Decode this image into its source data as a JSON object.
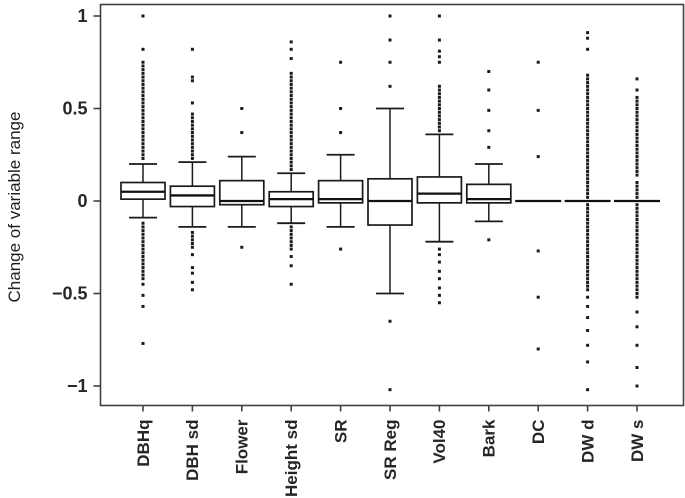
{
  "figure": {
    "background": "#ffffff",
    "ylabel": "Change of variable range"
  },
  "chart_data": {
    "type": "boxplot",
    "title": "",
    "xlabel": "",
    "ylabel": "Change of variable range",
    "ylim": [
      -1.1,
      1.06
    ],
    "grid": false,
    "frame": true,
    "legend": "none",
    "yticks": [
      {
        "v": 1,
        "label": "1"
      },
      {
        "v": 0.5,
        "label": "0.5"
      },
      {
        "v": 0,
        "label": "0"
      },
      {
        "v": -0.5,
        "label": "−0.5"
      },
      {
        "v": -1,
        "label": "−1"
      }
    ],
    "categories": [
      "DBHq",
      "DBH sd",
      "Flower",
      "Height sd",
      "SR",
      "SR Reg",
      "Vol40",
      "Bark",
      "DC",
      "DW d",
      "DW s"
    ],
    "boxes": [
      {
        "label": "DBHq",
        "whislo": -0.09,
        "q1": 0.01,
        "med": 0.05,
        "q3": 0.1,
        "whishi": 0.2,
        "outliers": [
          1.0,
          0.82,
          0.75,
          0.73,
          0.71,
          0.69,
          0.67,
          0.65,
          0.63,
          0.61,
          0.59,
          0.57,
          0.55,
          0.53,
          0.51,
          0.49,
          0.47,
          0.45,
          0.43,
          0.41,
          0.39,
          0.37,
          0.35,
          0.33,
          0.31,
          0.29,
          0.27,
          0.25,
          0.23,
          -0.12,
          -0.14,
          -0.16,
          -0.18,
          -0.2,
          -0.22,
          -0.24,
          -0.26,
          -0.28,
          -0.3,
          -0.32,
          -0.34,
          -0.36,
          -0.38,
          -0.4,
          -0.42,
          -0.45,
          -0.51,
          -0.57,
          -0.77
        ]
      },
      {
        "label": "DBH sd",
        "whislo": -0.14,
        "q1": -0.03,
        "med": 0.03,
        "q3": 0.08,
        "whishi": 0.21,
        "outliers": [
          0.82,
          0.67,
          0.65,
          0.53,
          0.47,
          0.45,
          0.43,
          0.41,
          0.39,
          0.37,
          0.35,
          0.33,
          0.31,
          0.29,
          0.27,
          0.25,
          0.23,
          -0.17,
          -0.19,
          -0.21,
          -0.23,
          -0.25,
          -0.29,
          -0.36,
          -0.39,
          -0.44,
          -0.48
        ]
      },
      {
        "label": "Flower",
        "whislo": -0.14,
        "q1": -0.02,
        "med": 0.0,
        "q3": 0.11,
        "whishi": 0.24,
        "outliers": [
          0.5,
          0.37,
          -0.25
        ]
      },
      {
        "label": "Height sd",
        "whislo": -0.12,
        "q1": -0.03,
        "med": 0.01,
        "q3": 0.05,
        "whishi": 0.15,
        "outliers": [
          0.86,
          0.82,
          0.77,
          0.69,
          0.67,
          0.65,
          0.63,
          0.61,
          0.59,
          0.57,
          0.55,
          0.53,
          0.51,
          0.49,
          0.47,
          0.45,
          0.43,
          0.41,
          0.39,
          0.37,
          0.35,
          0.33,
          0.31,
          0.29,
          0.27,
          0.25,
          0.23,
          0.21,
          0.19,
          0.17,
          -0.14,
          -0.16,
          -0.18,
          -0.2,
          -0.22,
          -0.24,
          -0.26,
          -0.3,
          -0.35,
          -0.45
        ]
      },
      {
        "label": "SR",
        "whislo": -0.14,
        "q1": -0.01,
        "med": 0.01,
        "q3": 0.11,
        "whishi": 0.25,
        "outliers": [
          0.75,
          0.5,
          0.37,
          -0.26
        ]
      },
      {
        "label": "SR Reg",
        "whislo": -0.5,
        "q1": -0.13,
        "med": 0.0,
        "q3": 0.12,
        "whishi": 0.5,
        "outliers": [
          1.0,
          0.87,
          0.75,
          0.62,
          -0.65,
          -1.02
        ]
      },
      {
        "label": "Vol40",
        "whislo": -0.22,
        "q1": -0.01,
        "med": 0.04,
        "q3": 0.13,
        "whishi": 0.36,
        "outliers": [
          1.0,
          0.87,
          0.81,
          0.78,
          0.75,
          0.62,
          0.6,
          0.58,
          0.56,
          0.54,
          0.52,
          0.5,
          0.48,
          0.46,
          0.44,
          0.42,
          0.4,
          0.38,
          -0.26,
          -0.29,
          -0.33,
          -0.38,
          -0.42,
          -0.47,
          -0.51,
          -0.55
        ]
      },
      {
        "label": "Bark",
        "whislo": -0.11,
        "q1": -0.01,
        "med": 0.01,
        "q3": 0.09,
        "whishi": 0.2,
        "outliers": [
          0.7,
          0.6,
          0.49,
          0.38,
          0.29,
          -0.21
        ]
      },
      {
        "label": "DC",
        "whislo": 0.0,
        "q1": 0.0,
        "med": 0.0,
        "q3": 0.0,
        "whishi": 0.0,
        "outliers": [
          0.75,
          0.49,
          0.24,
          -0.27,
          -0.52,
          -0.8
        ]
      },
      {
        "label": "DW d",
        "whislo": 0.0,
        "q1": 0.0,
        "med": 0.0,
        "q3": 0.0,
        "whishi": 0.0,
        "outliers": [
          0.91,
          0.88,
          0.82,
          0.68,
          0.66,
          0.64,
          0.62,
          0.6,
          0.58,
          0.56,
          0.54,
          0.52,
          0.5,
          0.48,
          0.46,
          0.44,
          0.42,
          0.4,
          0.38,
          0.36,
          0.34,
          0.32,
          0.3,
          0.28,
          0.26,
          0.24,
          0.22,
          0.2,
          0.18,
          0.16,
          0.14,
          0.12,
          0.1,
          0.08,
          0.06,
          0.04,
          0.02,
          -0.02,
          -0.04,
          -0.06,
          -0.08,
          -0.1,
          -0.12,
          -0.14,
          -0.16,
          -0.18,
          -0.2,
          -0.22,
          -0.24,
          -0.26,
          -0.28,
          -0.3,
          -0.32,
          -0.34,
          -0.36,
          -0.38,
          -0.4,
          -0.42,
          -0.44,
          -0.46,
          -0.48,
          -0.52,
          -0.57,
          -0.63,
          -0.7,
          -0.78,
          -0.87,
          -1.02
        ]
      },
      {
        "label": "DW s",
        "whislo": 0.0,
        "q1": 0.0,
        "med": 0.0,
        "q3": 0.0,
        "whishi": 0.0,
        "outliers": [
          0.66,
          0.6,
          0.56,
          0.54,
          0.52,
          0.5,
          0.48,
          0.46,
          0.44,
          0.42,
          0.4,
          0.38,
          0.36,
          0.34,
          0.32,
          0.3,
          0.28,
          0.26,
          0.24,
          0.22,
          0.2,
          0.18,
          0.16,
          0.14,
          0.1,
          0.08,
          0.06,
          0.04,
          0.02,
          -0.02,
          -0.04,
          -0.06,
          -0.08,
          -0.1,
          -0.12,
          -0.14,
          -0.16,
          -0.18,
          -0.2,
          -0.22,
          -0.24,
          -0.26,
          -0.28,
          -0.3,
          -0.32,
          -0.34,
          -0.36,
          -0.38,
          -0.4,
          -0.42,
          -0.44,
          -0.46,
          -0.48,
          -0.5,
          -0.52,
          -0.6,
          -0.68,
          -0.78,
          -0.9,
          -1.0
        ]
      }
    ],
    "colors": {
      "axis": "#404040",
      "box_stroke": "#1a1a1a",
      "median": "#111111",
      "outlier": "#1a1a1a",
      "text": "#262626",
      "background": "#ffffff"
    }
  }
}
